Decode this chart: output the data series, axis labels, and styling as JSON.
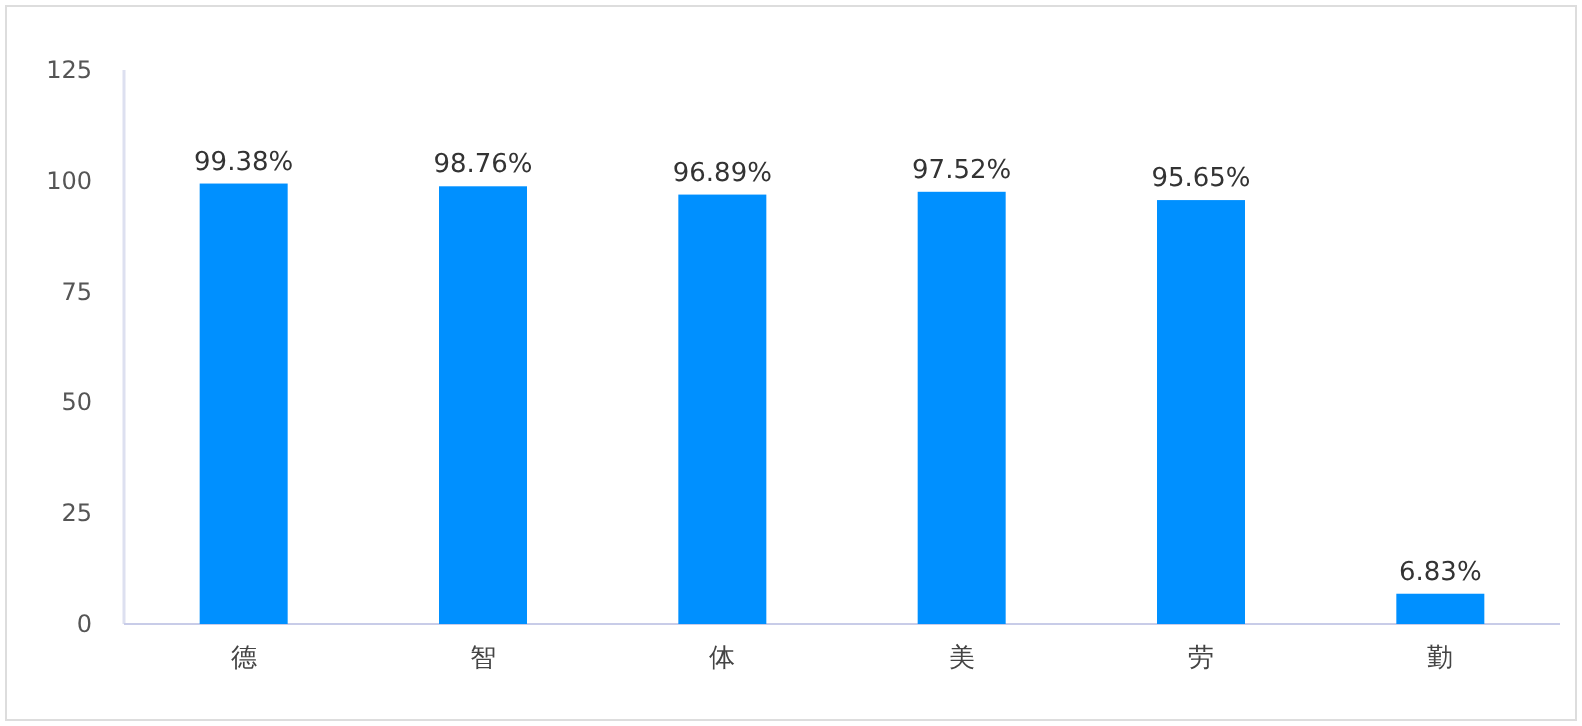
{
  "chart_data": {
    "type": "bar",
    "categories": [
      "德",
      "智",
      "体",
      "美",
      "劳",
      "勤"
    ],
    "values": [
      99.38,
      98.76,
      96.89,
      97.52,
      95.65,
      6.83
    ],
    "value_labels": [
      "99.38%",
      "98.76%",
      "96.89%",
      "97.52%",
      "95.65%",
      "6.83%"
    ],
    "color": "#0090ff",
    "ylim": [
      0,
      125
    ],
    "yticks": [
      0,
      25,
      50,
      75,
      100,
      125
    ],
    "grid": false
  }
}
